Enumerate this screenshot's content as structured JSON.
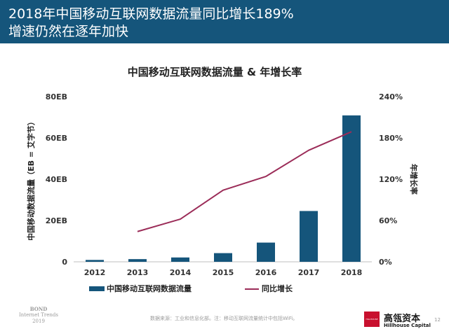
{
  "header": {
    "line1": "2018年中国移动互联网数据流量同比增长189%",
    "line2": "增速仍然在逐年加快"
  },
  "chart_data": {
    "type": "bar+line",
    "title": "中国移动互联网数据流量 & 年增长率",
    "categories": [
      "2012",
      "2013",
      "2014",
      "2015",
      "2016",
      "2017",
      "2018"
    ],
    "y_left": {
      "label": "中国移动数据流量（EB = 艾字节）",
      "ticks": [
        "0",
        "20EB",
        "40EB",
        "60EB",
        "80EB"
      ],
      "range": [
        0,
        80
      ]
    },
    "y_right": {
      "label": "年增长率",
      "ticks": [
        "0%",
        "60%",
        "120%",
        "180%",
        "240%"
      ],
      "range": [
        0,
        240
      ]
    },
    "series": [
      {
        "name": "中国移动互联网数据流量",
        "kind": "bar",
        "axis": "left",
        "color": "#15557b",
        "values": [
          0.9,
          1.3,
          2.1,
          4.2,
          9.3,
          24.6,
          70.9
        ]
      },
      {
        "name": "同比增长",
        "kind": "line",
        "axis": "right",
        "color": "#9b2c58",
        "values": [
          null,
          44,
          62,
          104,
          124,
          162,
          189
        ]
      }
    ],
    "legend_position": "bottom",
    "grid": false
  },
  "footer": {
    "left_logo": [
      "BOND",
      "Internet Trends",
      "2019"
    ],
    "source": "数据来源：工业和信息化部。注：移动互联网流量统计中包括WiFi。",
    "brand_box_text": "HILLHOUSE",
    "brand_cn": "高瓴资本",
    "brand_en": "Hillhouse Capital",
    "page": "12"
  }
}
